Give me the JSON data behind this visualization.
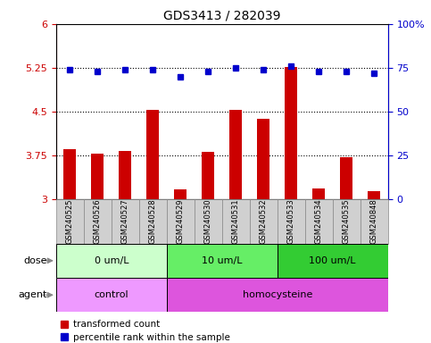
{
  "title": "GDS3413 / 282039",
  "samples": [
    "GSM240525",
    "GSM240526",
    "GSM240527",
    "GSM240528",
    "GSM240529",
    "GSM240530",
    "GSM240531",
    "GSM240532",
    "GSM240533",
    "GSM240534",
    "GSM240535",
    "GSM240848"
  ],
  "bar_values": [
    3.85,
    3.77,
    3.82,
    4.53,
    3.17,
    3.8,
    4.53,
    4.38,
    5.27,
    3.18,
    3.72,
    3.13
  ],
  "dot_values": [
    74,
    73,
    74,
    74,
    70,
    73,
    75,
    74,
    76,
    73,
    73,
    72
  ],
  "bar_color": "#cc0000",
  "dot_color": "#0000cc",
  "ylim_left": [
    3.0,
    6.0
  ],
  "ylim_right": [
    0,
    100
  ],
  "yticks_left": [
    3.0,
    3.75,
    4.5,
    5.25,
    6.0
  ],
  "ytick_labels_left": [
    "3",
    "3.75",
    "4.5",
    "5.25",
    "6"
  ],
  "yticks_right": [
    0,
    25,
    50,
    75,
    100
  ],
  "ytick_labels_right": [
    "0",
    "25",
    "50",
    "75",
    "100%"
  ],
  "hlines": [
    3.75,
    4.5,
    5.25
  ],
  "dose_groups": [
    {
      "label": "0 um/L",
      "start": 0,
      "end": 4,
      "color": "#ccffcc"
    },
    {
      "label": "10 um/L",
      "start": 4,
      "end": 8,
      "color": "#66ee66"
    },
    {
      "label": "100 um/L",
      "start": 8,
      "end": 12,
      "color": "#33cc33"
    }
  ],
  "agent_control_color": "#ee99ff",
  "agent_homocysteine_color": "#dd55dd",
  "agent_groups": [
    {
      "label": "control",
      "start": 0,
      "end": 4,
      "color": "#ee99ff"
    },
    {
      "label": "homocysteine",
      "start": 4,
      "end": 12,
      "color": "#dd55dd"
    }
  ],
  "legend_bar_label": "transformed count",
  "legend_dot_label": "percentile rank within the sample",
  "row_label_dose": "dose",
  "row_label_agent": "agent",
  "left_yaxis_color": "#cc0000",
  "right_yaxis_color": "#0000cc",
  "xtick_bg_color": "#d0d0d0",
  "xtick_border_color": "#888888"
}
